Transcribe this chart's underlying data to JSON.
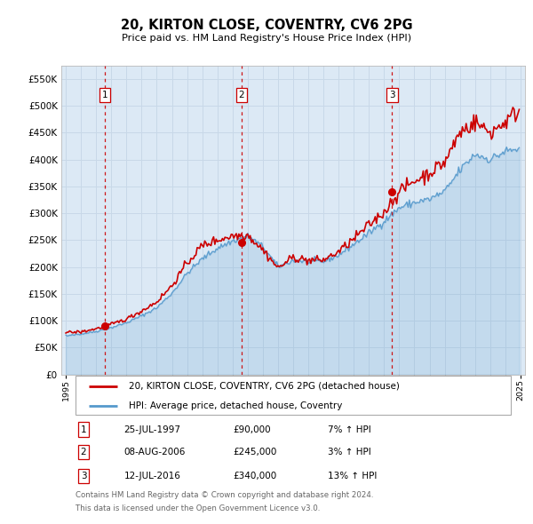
{
  "title": "20, KIRTON CLOSE, COVENTRY, CV6 2PG",
  "subtitle": "Price paid vs. HM Land Registry's House Price Index (HPI)",
  "background_color": "#dce9f5",
  "plot_bg_color": "#dce9f5",
  "ylim": [
    0,
    575000
  ],
  "yticks": [
    0,
    50000,
    100000,
    150000,
    200000,
    250000,
    300000,
    350000,
    400000,
    450000,
    500000,
    550000
  ],
  "xlim_start": 1994.7,
  "xlim_end": 2025.3,
  "sales": [
    {
      "year": 1997.56,
      "price": 90000,
      "label": "1"
    },
    {
      "year": 2006.6,
      "price": 245000,
      "label": "2"
    },
    {
      "year": 2016.53,
      "price": 340000,
      "label": "3"
    }
  ],
  "sale_dates": [
    "25-JUL-1997",
    "08-AUG-2006",
    "12-JUL-2016"
  ],
  "sale_prices": [
    "£90,000",
    "£245,000",
    "£340,000"
  ],
  "sale_hpi": [
    "7% ↑ HPI",
    "3% ↑ HPI",
    "13% ↑ HPI"
  ],
  "legend_line1": "20, KIRTON CLOSE, COVENTRY, CV6 2PG (detached house)",
  "legend_line2": "HPI: Average price, detached house, Coventry",
  "footer1": "Contains HM Land Registry data © Crown copyright and database right 2024.",
  "footer2": "This data is licensed under the Open Government Licence v3.0.",
  "red_line_color": "#cc0000",
  "blue_line_color": "#5599cc",
  "dashed_line_color": "#cc0000",
  "grid_color": "#c8d8e8",
  "spine_color": "#bbbbbb"
}
